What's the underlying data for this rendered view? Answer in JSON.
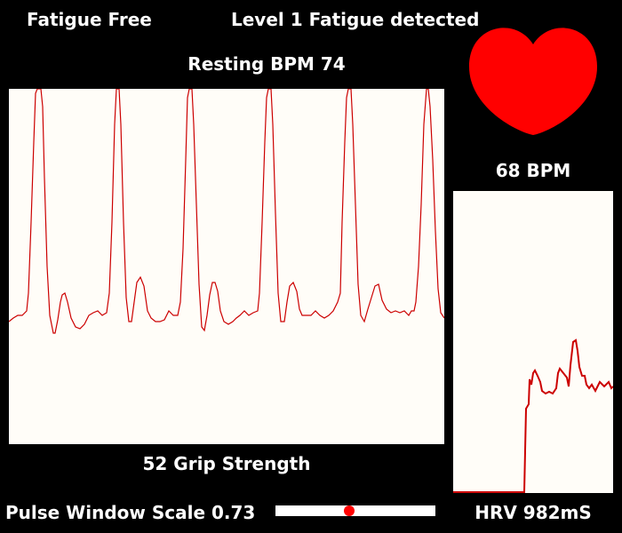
{
  "status": {
    "left": "Fatigue Free",
    "center": "Level 1 Fatigue detected"
  },
  "resting": "Resting BPM 74",
  "bpm": "68 BPM",
  "grip": "52 Grip Strength",
  "scale": {
    "label": "Pulse Window Scale 0.73",
    "value": 0.73,
    "thumb_fraction": 0.46
  },
  "hrv": "HRV 982mS",
  "colors": {
    "background": "#000000",
    "panel": "#fffdf8",
    "trace": "#cc0000",
    "heart": "#ff0000",
    "text": "#ffffff"
  },
  "icons": {
    "heart": "heart-icon"
  }
}
